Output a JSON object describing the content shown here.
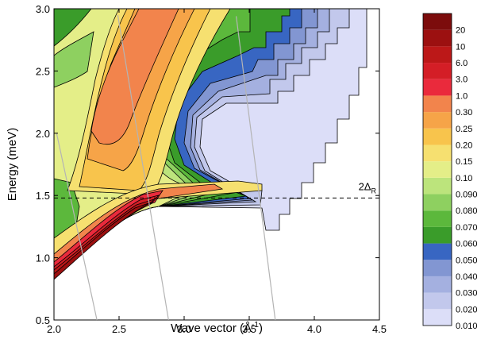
{
  "chart_data": {
    "type": "contour",
    "x_label": {
      "text": "Wave vector (Å",
      "sup": "-1",
      "end": ")"
    },
    "y_label": "Energy (meV)",
    "xlim": [
      2.0,
      4.5
    ],
    "ylim": [
      0.5,
      3.0
    ],
    "xticks": [
      {
        "value": 2,
        "label": "2.0"
      },
      2.5,
      {
        "value": 3,
        "label": "3.0"
      },
      3.5,
      {
        "value": 4,
        "label": "4.0"
      },
      4.5
    ],
    "yticks": [
      0.5,
      {
        "value": 1,
        "label": "1.0"
      },
      1.5,
      {
        "value": 2,
        "label": "2.0"
      },
      2.5,
      {
        "value": 3,
        "label": "3.0"
      }
    ],
    "levels": [
      {
        "value": 0.01,
        "label": "0.010",
        "color": "#dcdef8"
      },
      {
        "value": 0.02,
        "label": "0.020",
        "color": "#c2c8ec"
      },
      {
        "value": 0.03,
        "label": "0.030",
        "color": "#a4b0e0"
      },
      {
        "value": 0.04,
        "label": "0.040",
        "color": "#8296d2"
      },
      {
        "value": 0.05,
        "label": "0.050",
        "color": "#3866c2"
      },
      {
        "value": 0.06,
        "label": "0.060",
        "color": "#3a9c2a"
      },
      {
        "value": 0.07,
        "label": "0.070",
        "color": "#5cb83c"
      },
      {
        "value": 0.08,
        "label": "0.080",
        "color": "#8ed060"
      },
      {
        "value": 0.09,
        "label": "0.090",
        "color": "#bce47c"
      },
      {
        "value": 0.1,
        "label": "0.10",
        "color": "#e4ee88"
      },
      {
        "value": 0.15,
        "label": "0.15",
        "color": "#f6e070"
      },
      {
        "value": 0.2,
        "label": "0.20",
        "color": "#f8c44c"
      },
      {
        "value": 0.25,
        "label": "0.25",
        "color": "#f6a448"
      },
      {
        "value": 0.3,
        "label": "0.30",
        "color": "#f2844c"
      },
      {
        "value": 1,
        "label": "1.0",
        "color": "#ea2a3c"
      },
      {
        "value": 3,
        "label": "3.0",
        "color": "#d41e26"
      },
      {
        "value": 6,
        "label": "6.0",
        "color": "#bc1818"
      },
      {
        "value": 10,
        "label": "10",
        "color": "#9c1010"
      },
      {
        "value": 20,
        "label": "20",
        "color": "#7c0c0c"
      }
    ],
    "reference_lines": {
      "color": "#b4b4b4",
      "lines": [
        {
          "x": [
            2.02,
            2.33
          ],
          "y": [
            2.0,
            0.5
          ]
        },
        {
          "x": [
            2.49,
            2.88
          ],
          "y": [
            2.95,
            0.5
          ]
        },
        {
          "x": [
            3.4,
            3.7
          ],
          "y": [
            2.94,
            0.5
          ]
        }
      ]
    },
    "threshold": {
      "value": 1.48,
      "label": "2Δ",
      "sub": "R"
    }
  }
}
